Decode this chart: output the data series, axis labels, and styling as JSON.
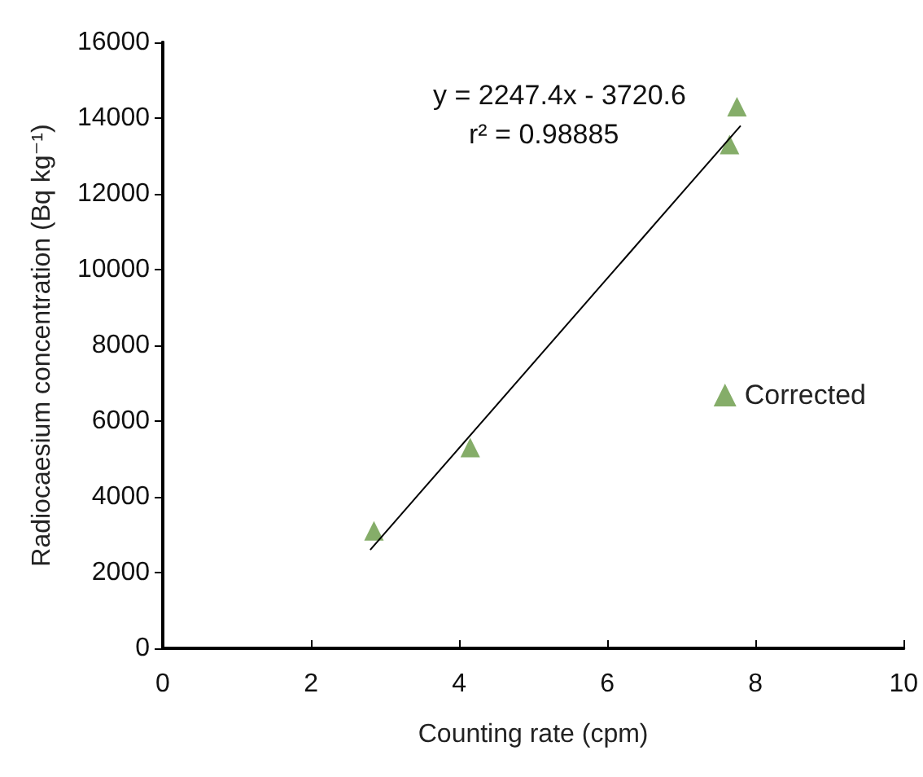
{
  "chart_data": {
    "type": "scatter",
    "xlabel": "Counting rate (cpm)",
    "ylabel": "Radiocaesium concentration (Bq kg⁻¹)",
    "xlim": [
      0,
      10
    ],
    "xticks": [
      0,
      2,
      4,
      6,
      8,
      10
    ],
    "ylim": [
      0,
      16000
    ],
    "yticks": [
      0,
      2000,
      4000,
      6000,
      8000,
      10000,
      12000,
      14000,
      16000
    ],
    "grid": false,
    "legend": "right",
    "marker": "triangle",
    "annotations": [
      "y = 2247.4x - 3720.6",
      "r² = 0.98885"
    ],
    "series": [
      {
        "name": "Corrected",
        "color": "#669944",
        "x": [
          2.85,
          4.15,
          7.65,
          7.75
        ],
        "values": [
          3100,
          5300,
          13300,
          14300
        ]
      },
      {
        "type": "line",
        "color": "#000000",
        "marker": "none",
        "line_style": "solid",
        "x": [
          2.8,
          7.8
        ],
        "values": [
          2600,
          13800
        ]
      }
    ]
  }
}
